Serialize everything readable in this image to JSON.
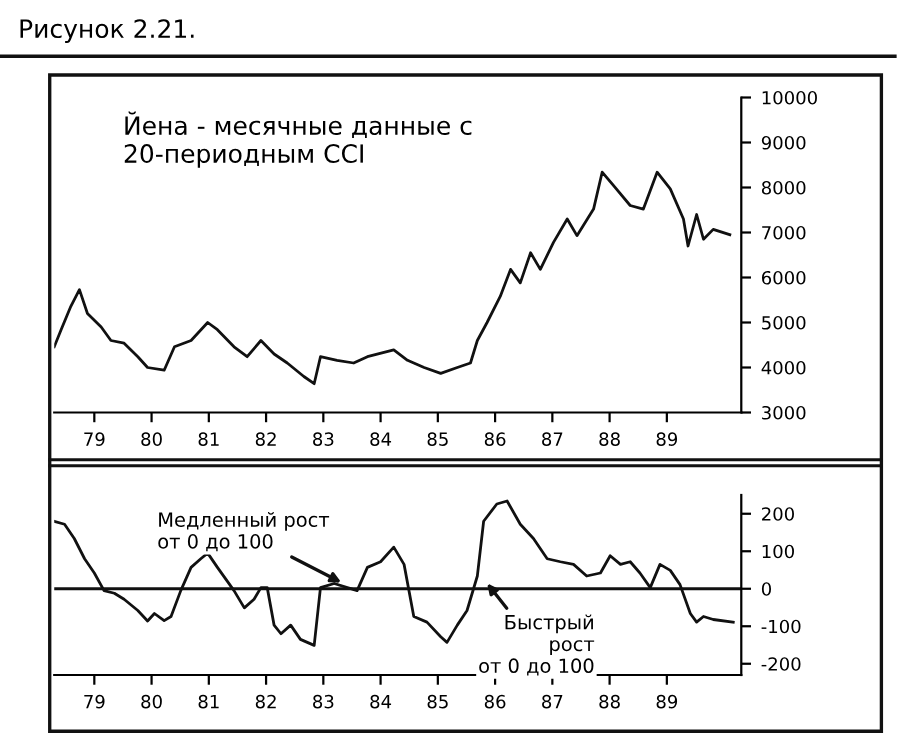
{
  "chart_data": [
    {
      "type": "line",
      "title": "Йена - месячные данные с\n20-периодным CCI",
      "annotations": [
        "Рисунок 2.21."
      ],
      "series": [
        {
          "color": "#111111",
          "x": [
            78.3,
            78.42,
            78.59,
            78.74,
            78.88,
            79.12,
            79.29,
            79.52,
            79.76,
            79.93,
            80.22,
            80.4,
            80.69,
            80.98,
            81.15,
            81.44,
            81.67,
            81.91,
            82.14,
            82.37,
            82.66,
            82.84,
            82.95,
            83.24,
            83.53,
            83.77,
            84.23,
            84.47,
            84.76,
            85.05,
            85.34,
            85.57,
            85.69,
            85.86,
            86.09,
            86.27,
            86.44,
            86.62,
            86.79,
            87.02,
            87.26,
            87.43,
            87.72,
            87.87,
            88.07,
            88.36,
            88.59,
            88.83,
            89.06,
            89.29,
            89.37,
            89.52,
            89.64,
            89.81,
            90.1
          ],
          "values": [
            4460,
            4840,
            5360,
            5730,
            5200,
            4900,
            4600,
            4540,
            4240,
            4000,
            3940,
            4460,
            4600,
            5000,
            4840,
            4460,
            4240,
            4600,
            4300,
            4100,
            3800,
            3640,
            4240,
            4160,
            4100,
            4240,
            4390,
            4160,
            4000,
            3870,
            4000,
            4100,
            4600,
            5000,
            5580,
            6180,
            5880,
            6550,
            6180,
            6780,
            7300,
            6930,
            7520,
            8340,
            8040,
            7600,
            7520,
            8340,
            7970,
            7300,
            6700,
            7400,
            6850,
            7070,
            6950
          ]
        }
      ],
      "xlim": [
        78.3,
        90.3
      ],
      "xticks": [
        79,
        80,
        81,
        82,
        83,
        84,
        85,
        86,
        87,
        88,
        89
      ],
      "ylim": [
        3000,
        10000
      ],
      "yticks": [
        3000,
        4000,
        5000,
        6000,
        7000,
        8000,
        9000,
        10000
      ],
      "grid": false
    },
    {
      "type": "line",
      "series": [
        {
          "color": "#111111",
          "x": [
            78.3,
            78.48,
            78.65,
            78.83,
            79.0,
            79.17,
            79.35,
            79.52,
            79.76,
            79.93,
            80.05,
            80.22,
            80.34,
            80.51,
            80.69,
            80.86,
            80.98,
            81.15,
            81.44,
            81.62,
            81.79,
            81.91,
            82.02,
            82.14,
            82.26,
            82.43,
            82.6,
            82.84,
            82.95,
            83.19,
            83.42,
            83.59,
            83.77,
            84.0,
            84.23,
            84.41,
            84.58,
            84.81,
            85.05,
            85.16,
            85.34,
            85.51,
            85.69,
            85.8,
            86.03,
            86.21,
            86.44,
            86.67,
            86.91,
            87.14,
            87.37,
            87.6,
            87.84,
            88.01,
            88.19,
            88.36,
            88.53,
            88.71,
            88.88,
            89.06,
            89.23,
            89.41,
            89.52,
            89.64,
            89.81,
            90.16
          ],
          "values": [
            180,
            172,
            134,
            80,
            42,
            -5,
            -12,
            -28,
            -58,
            -86,
            -66,
            -85,
            -74,
            -5,
            57,
            80,
            95,
            57,
            -5,
            -51,
            -28,
            3,
            3,
            -97,
            -120,
            -97,
            -135,
            -151,
            3,
            14,
            3,
            -5,
            57,
            72,
            111,
            65,
            -74,
            -89,
            -128,
            -143,
            -97,
            -58,
            34,
            180,
            226,
            234,
            172,
            134,
            80,
            72,
            65,
            34,
            42,
            88,
            65,
            72,
            42,
            3,
            65,
            49,
            11,
            -66,
            -89,
            -74,
            -82,
            -89
          ]
        }
      ],
      "xlim": [
        78.3,
        90.3
      ],
      "xticks": [
        79,
        80,
        81,
        82,
        83,
        84,
        85,
        86,
        87,
        88,
        89
      ],
      "ylim": [
        -230,
        250
      ],
      "yticks": [
        -200,
        -100,
        0,
        100,
        200
      ],
      "ref_lines": [
        {
          "axis": "y",
          "value": 0,
          "color": "#111111"
        }
      ],
      "annotations": [
        {
          "text": "Медленный рост\nот 0 до 100",
          "x": 83.4,
          "y": 10
        },
        {
          "text": "Быстрый\nрост\nот 0 до 100",
          "x": 85.8,
          "y": 26
        }
      ],
      "grid": false
    }
  ]
}
